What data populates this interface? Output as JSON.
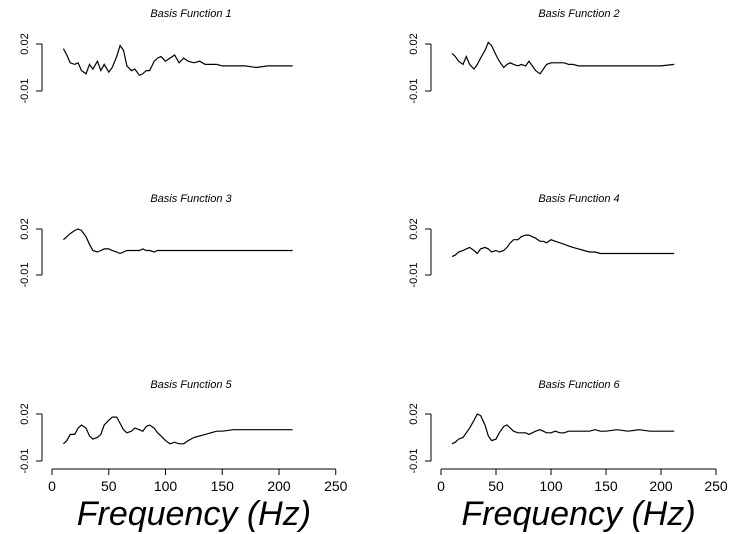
{
  "chart_data": [
    {
      "type": "line",
      "title": "Basis Function 1",
      "x": [
        10,
        13,
        16,
        20,
        23,
        26,
        30,
        33,
        36,
        40,
        43,
        46,
        50,
        53,
        57,
        60,
        63,
        66,
        70,
        73,
        77,
        80,
        83,
        86,
        90,
        93,
        96,
        100,
        104,
        108,
        112,
        116,
        120,
        125,
        130,
        135,
        140,
        145,
        150,
        160,
        170,
        180,
        190,
        200,
        212
      ],
      "y": [
        0.017,
        0.013,
        0.008,
        0.007,
        0.008,
        0.003,
        0.001,
        0.007,
        0.004,
        0.009,
        0.003,
        0.007,
        0.002,
        0.005,
        0.012,
        0.019,
        0.016,
        0.006,
        0.003,
        0.004,
        0.0,
        0.001,
        0.003,
        0.003,
        0.009,
        0.011,
        0.012,
        0.009,
        0.011,
        0.013,
        0.008,
        0.011,
        0.009,
        0.008,
        0.009,
        0.007,
        0.007,
        0.007,
        0.006,
        0.006,
        0.006,
        0.005,
        0.006,
        0.006,
        0.006
      ],
      "yticks": [
        "-0.01",
        "0.02"
      ],
      "ylim": [
        -0.01,
        0.02
      ]
    },
    {
      "type": "line",
      "title": "Basis Function 2",
      "x": [
        10,
        13,
        16,
        20,
        23,
        26,
        30,
        33,
        36,
        40,
        43,
        46,
        50,
        53,
        57,
        60,
        63,
        66,
        70,
        73,
        77,
        80,
        83,
        86,
        90,
        93,
        96,
        100,
        104,
        108,
        112,
        116,
        120,
        125,
        130,
        135,
        140,
        145,
        150,
        160,
        170,
        180,
        190,
        200,
        212
      ],
      "y": [
        0.014,
        0.012,
        0.009,
        0.007,
        0.012,
        0.007,
        0.004,
        0.007,
        0.011,
        0.016,
        0.021,
        0.019,
        0.013,
        0.009,
        0.005,
        0.007,
        0.008,
        0.007,
        0.006,
        0.007,
        0.006,
        0.009,
        0.006,
        0.003,
        0.001,
        0.004,
        0.007,
        0.008,
        0.008,
        0.008,
        0.008,
        0.007,
        0.007,
        0.006,
        0.006,
        0.006,
        0.006,
        0.006,
        0.006,
        0.006,
        0.006,
        0.006,
        0.006,
        0.006,
        0.007
      ],
      "yticks": [
        "-0.01",
        "0.02"
      ],
      "ylim": [
        -0.01,
        0.02
      ]
    },
    {
      "type": "line",
      "title": "Basis Function 3",
      "x": [
        10,
        13,
        16,
        20,
        23,
        26,
        30,
        33,
        36,
        40,
        43,
        46,
        50,
        53,
        57,
        60,
        63,
        66,
        70,
        73,
        77,
        80,
        83,
        86,
        90,
        93,
        96,
        100,
        104,
        108,
        112,
        116,
        120,
        125,
        130,
        135,
        140,
        145,
        150,
        160,
        170,
        180,
        190,
        200,
        212
      ],
      "y": [
        0.013,
        0.015,
        0.017,
        0.019,
        0.02,
        0.019,
        0.015,
        0.01,
        0.006,
        0.005,
        0.006,
        0.007,
        0.007,
        0.006,
        0.005,
        0.004,
        0.005,
        0.006,
        0.006,
        0.006,
        0.006,
        0.007,
        0.006,
        0.006,
        0.005,
        0.006,
        0.006,
        0.006,
        0.006,
        0.006,
        0.006,
        0.006,
        0.006,
        0.006,
        0.006,
        0.006,
        0.006,
        0.006,
        0.006,
        0.006,
        0.006,
        0.006,
        0.006,
        0.006,
        0.006
      ],
      "yticks": [
        "-0.01",
        "0.02"
      ],
      "ylim": [
        -0.01,
        0.02
      ]
    },
    {
      "type": "line",
      "title": "Basis Function 4",
      "x": [
        10,
        13,
        16,
        20,
        23,
        26,
        30,
        33,
        36,
        40,
        43,
        46,
        50,
        53,
        57,
        60,
        63,
        66,
        70,
        73,
        77,
        80,
        83,
        86,
        90,
        93,
        96,
        100,
        104,
        108,
        112,
        116,
        120,
        125,
        130,
        135,
        140,
        145,
        150,
        160,
        170,
        180,
        190,
        200,
        212
      ],
      "y": [
        0.002,
        0.003,
        0.005,
        0.006,
        0.007,
        0.008,
        0.006,
        0.004,
        0.007,
        0.008,
        0.007,
        0.005,
        0.006,
        0.005,
        0.006,
        0.008,
        0.011,
        0.013,
        0.013,
        0.015,
        0.016,
        0.016,
        0.015,
        0.014,
        0.012,
        0.012,
        0.011,
        0.013,
        0.012,
        0.011,
        0.01,
        0.009,
        0.008,
        0.007,
        0.006,
        0.005,
        0.005,
        0.004,
        0.004,
        0.004,
        0.004,
        0.004,
        0.004,
        0.004,
        0.004
      ],
      "yticks": [
        "-0.01",
        "0.02"
      ],
      "ylim": [
        -0.01,
        0.02
      ]
    },
    {
      "type": "line",
      "title": "Basis Function 5",
      "x": [
        10,
        13,
        16,
        20,
        23,
        26,
        30,
        33,
        36,
        40,
        43,
        46,
        50,
        53,
        57,
        60,
        63,
        66,
        70,
        73,
        77,
        80,
        83,
        86,
        90,
        93,
        96,
        100,
        104,
        108,
        112,
        116,
        120,
        125,
        130,
        135,
        140,
        145,
        150,
        160,
        170,
        180,
        190,
        200,
        212
      ],
      "y": [
        0.001,
        0.003,
        0.007,
        0.007,
        0.011,
        0.013,
        0.011,
        0.006,
        0.004,
        0.005,
        0.007,
        0.013,
        0.016,
        0.018,
        0.018,
        0.014,
        0.01,
        0.008,
        0.009,
        0.011,
        0.01,
        0.009,
        0.012,
        0.013,
        0.011,
        0.008,
        0.006,
        0.003,
        0.001,
        0.002,
        0.001,
        0.001,
        0.003,
        0.005,
        0.006,
        0.007,
        0.008,
        0.009,
        0.009,
        0.01,
        0.01,
        0.01,
        0.01,
        0.01,
        0.01
      ],
      "yticks": [
        "-0.01",
        "0.02"
      ],
      "ylim": [
        -0.01,
        0.02
      ],
      "xticks": [
        "0",
        "50",
        "100",
        "150",
        "200",
        "250"
      ],
      "xlim": [
        0,
        250
      ],
      "xlabel": "Frequency (Hz)"
    },
    {
      "type": "line",
      "title": "Basis Function 6",
      "x": [
        10,
        13,
        16,
        20,
        23,
        26,
        30,
        33,
        36,
        40,
        43,
        46,
        50,
        53,
        57,
        60,
        63,
        66,
        70,
        73,
        77,
        80,
        83,
        86,
        90,
        93,
        96,
        100,
        104,
        108,
        112,
        116,
        120,
        125,
        130,
        135,
        140,
        145,
        150,
        160,
        170,
        180,
        190,
        200,
        212
      ],
      "y": [
        0.001,
        0.002,
        0.004,
        0.005,
        0.008,
        0.011,
        0.016,
        0.02,
        0.019,
        0.013,
        0.006,
        0.003,
        0.004,
        0.008,
        0.012,
        0.013,
        0.011,
        0.009,
        0.008,
        0.008,
        0.008,
        0.007,
        0.008,
        0.009,
        0.01,
        0.009,
        0.008,
        0.008,
        0.009,
        0.008,
        0.008,
        0.009,
        0.009,
        0.009,
        0.009,
        0.009,
        0.01,
        0.009,
        0.009,
        0.01,
        0.009,
        0.01,
        0.009,
        0.009,
        0.009
      ],
      "yticks": [
        "-0.01",
        "0.02"
      ],
      "ylim": [
        -0.01,
        0.02
      ],
      "xticks": [
        "0",
        "50",
        "100",
        "150",
        "200",
        "250"
      ],
      "xlim": [
        0,
        250
      ],
      "xlabel": "Frequency (Hz)"
    }
  ]
}
